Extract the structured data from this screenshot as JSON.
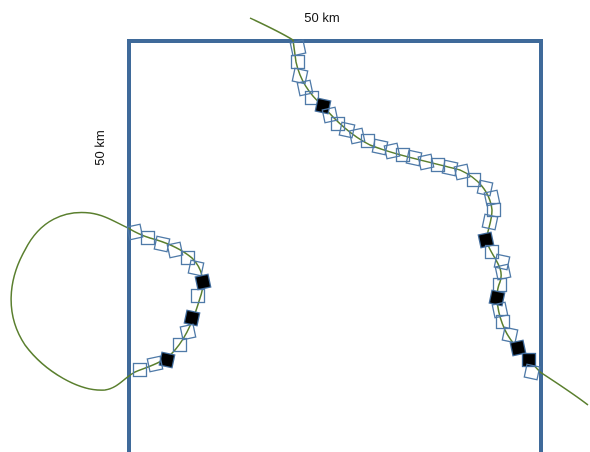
{
  "labels": {
    "top": "50 km",
    "left": "50 km"
  }
}
